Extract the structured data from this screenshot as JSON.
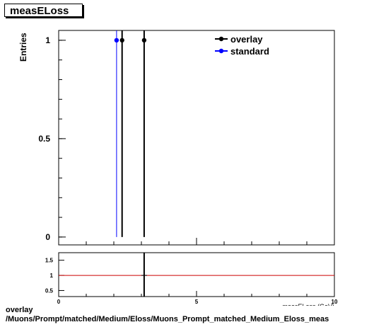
{
  "page": {
    "title": "measELoss",
    "footer_line1": "overlay",
    "footer_line2": "/Muons/Prompt/matched/Medium/Eloss/Muons_Prompt_matched_Medium_Eloss_meas"
  },
  "chart_data": {
    "type": "scatter",
    "main": {
      "ylabel": "Entries",
      "xlim": [
        0,
        10
      ],
      "ylim": [
        -0.04,
        1.05
      ],
      "yticks": [
        {
          "value": 0,
          "label": "0"
        },
        {
          "value": 0.5,
          "label": "0.5"
        },
        {
          "value": 1,
          "label": "1"
        }
      ],
      "series": [
        {
          "name": "overlay",
          "color": "#000000",
          "x": [
            2.3,
            3.1
          ],
          "y": [
            1,
            1
          ]
        },
        {
          "name": "standard",
          "color": "#0000ff",
          "x": [
            2.1
          ],
          "y": [
            1
          ]
        }
      ],
      "legend_position": "top-right"
    },
    "ratio": {
      "xlabel": "measELoss (GeV)",
      "xlim": [
        0,
        10
      ],
      "ylim": [
        0.3,
        1.75
      ],
      "xticks": [
        {
          "value": 0,
          "label": "0"
        },
        {
          "value": 5,
          "label": "5"
        },
        {
          "value": 10,
          "label": "10"
        }
      ],
      "yticks": [
        {
          "value": 0.5,
          "label": "0.5"
        },
        {
          "value": 1,
          "label": "1"
        },
        {
          "value": 1.5,
          "label": "1.5"
        }
      ],
      "reference_line": {
        "value": 1,
        "color": "#cc0000"
      },
      "points": [
        {
          "x": 3.1,
          "y": 1
        }
      ]
    }
  }
}
